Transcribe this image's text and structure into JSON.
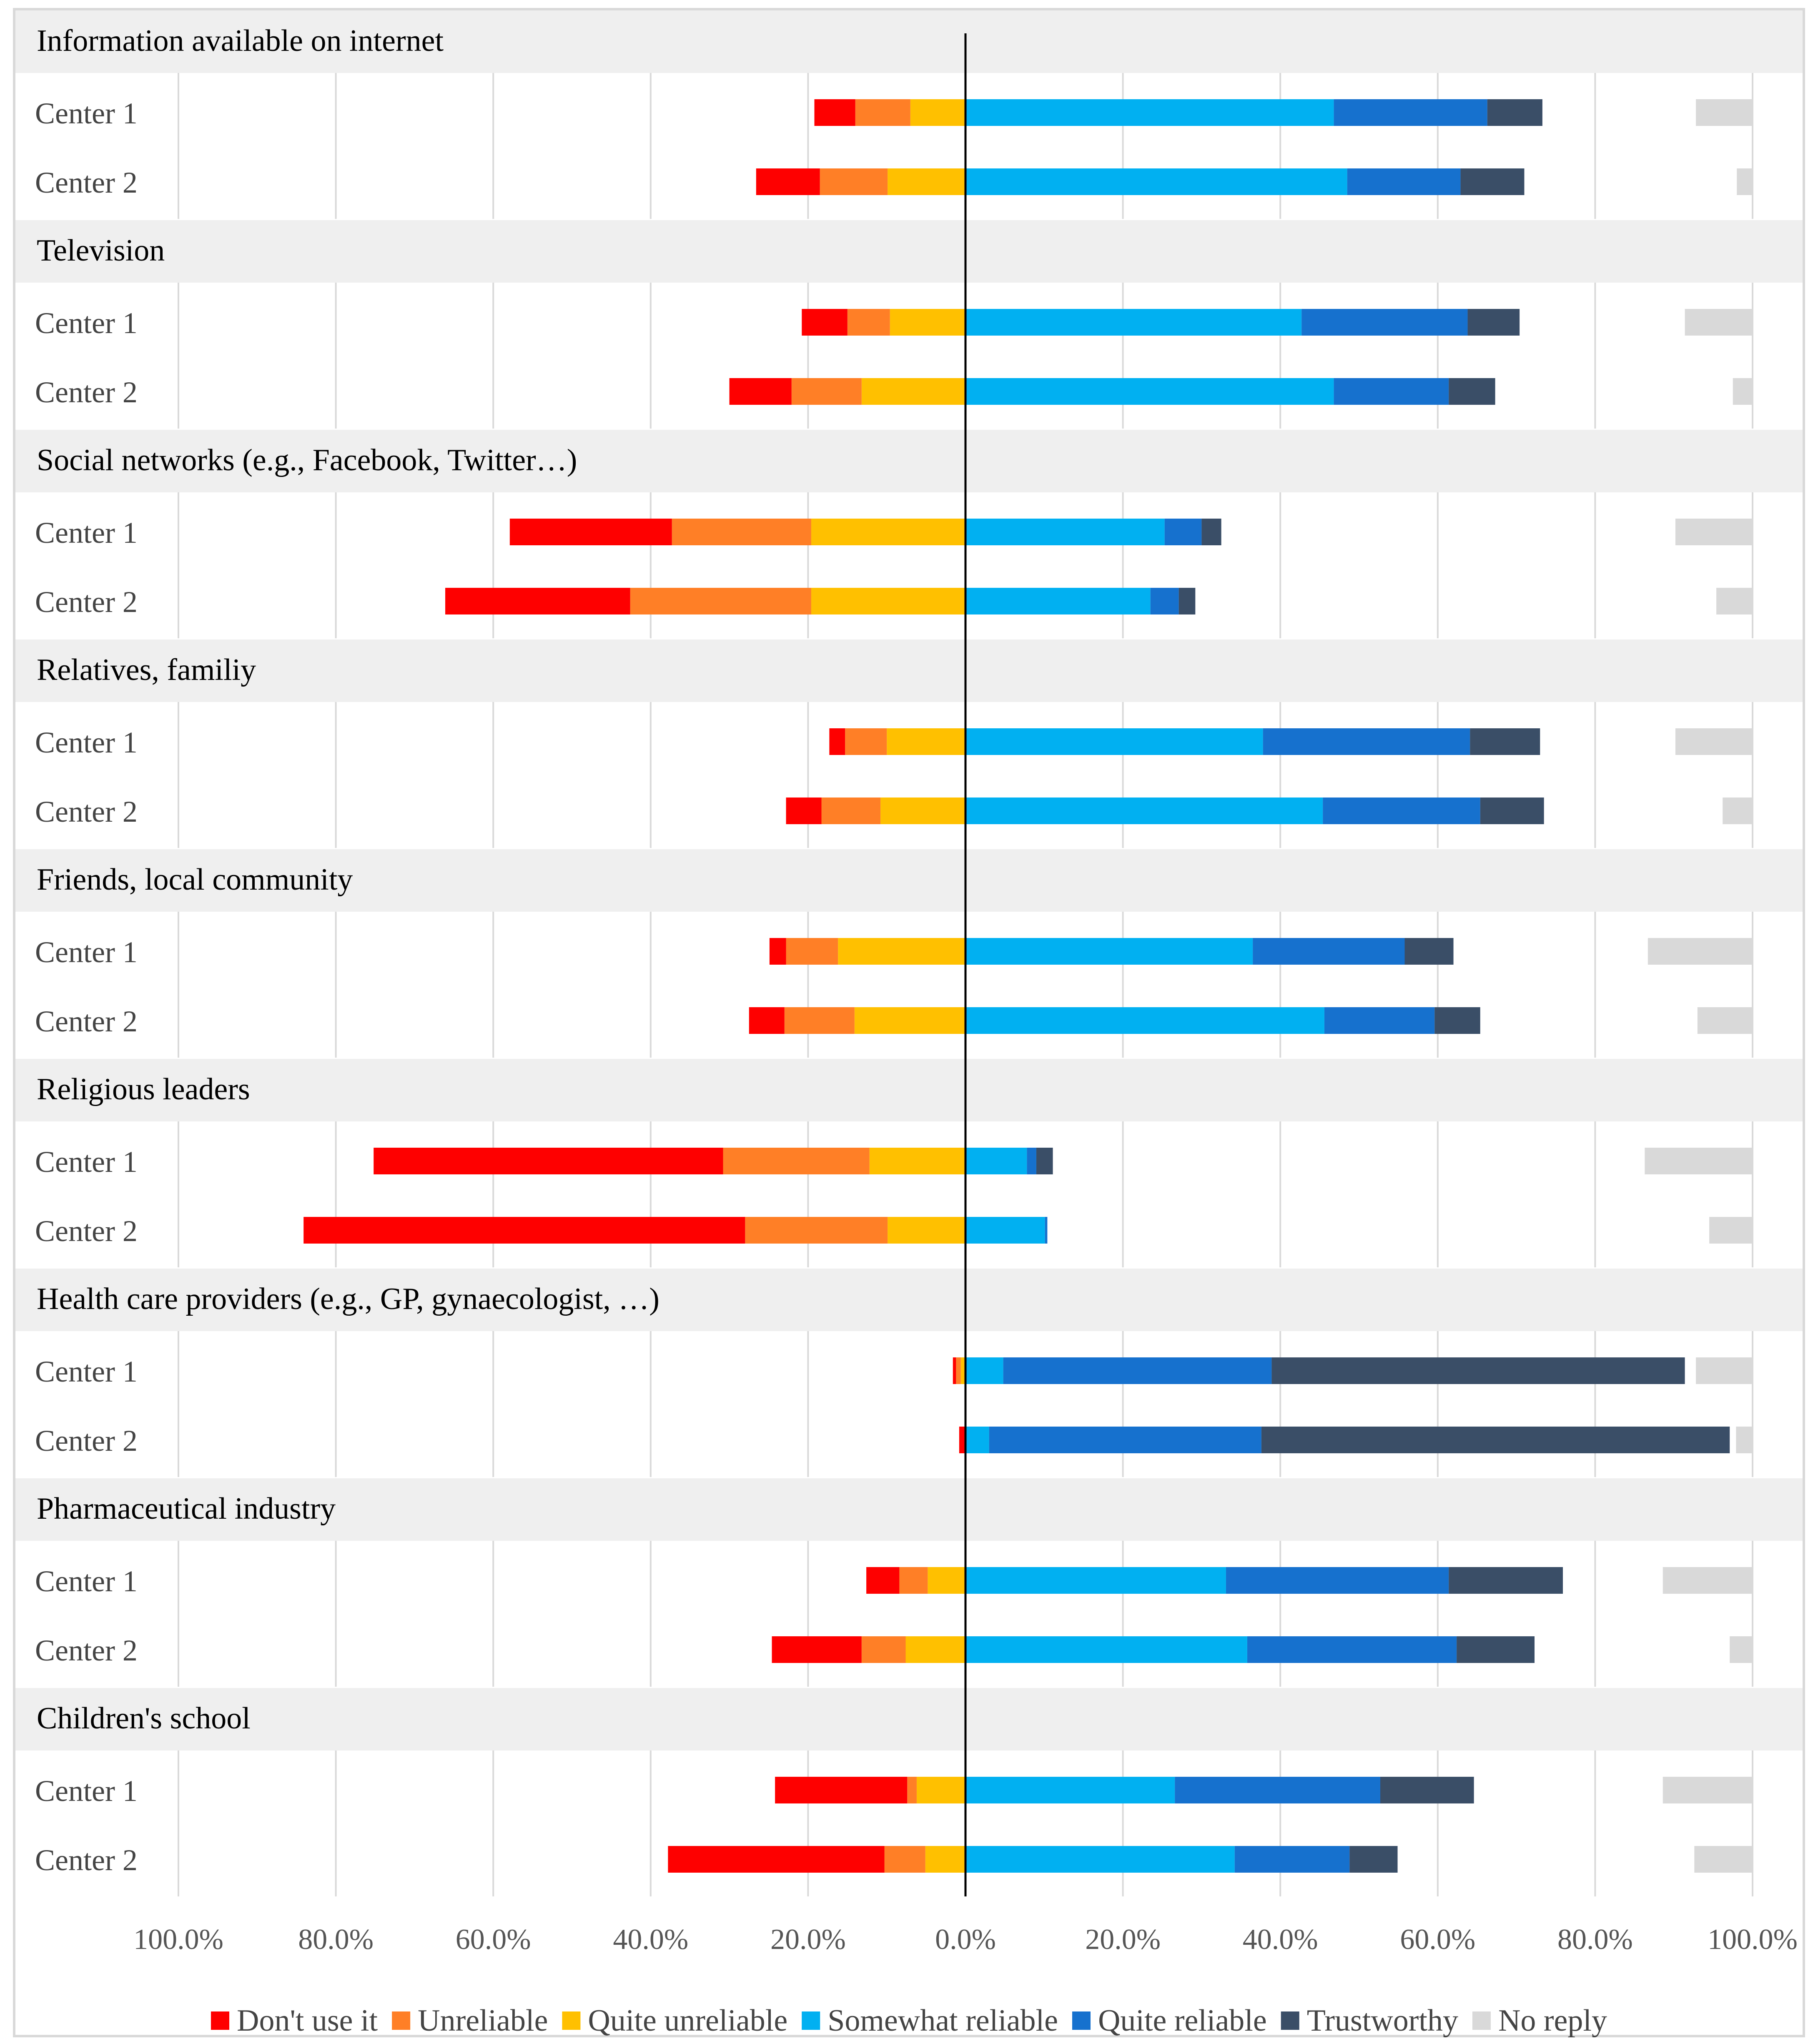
{
  "chart_data": {
    "type": "bar",
    "subtype": "diverging-stacked-horizontal",
    "x_ticks": [
      "100.0%",
      "80.0%",
      "60.0%",
      "40.0%",
      "20.0%",
      "0.0%",
      "20.0%",
      "40.0%",
      "60.0%",
      "80.0%",
      "100.0%"
    ],
    "xlim": [
      -100,
      100
    ],
    "grid": true,
    "legend_position": "bottom",
    "categories": [
      {
        "title": "Information available on internet",
        "rows": [
          {
            "label": "Center 1",
            "negative": {
              "dont_use": 5.2,
              "unreliable": 7.0,
              "quite_unreliable": 7.0
            },
            "positive": {
              "somewhat": 46.8,
              "quite": 19.5,
              "trustworthy": 7.0
            },
            "no_reply": 7.2
          },
          {
            "label": "Center 2",
            "negative": {
              "dont_use": 8.1,
              "unreliable": 8.6,
              "quite_unreliable": 9.9
            },
            "positive": {
              "somewhat": 48.5,
              "quite": 14.4,
              "trustworthy": 8.1
            },
            "no_reply": 2.0
          }
        ]
      },
      {
        "title": "Television",
        "rows": [
          {
            "label": "Center 1",
            "negative": {
              "dont_use": 5.8,
              "unreliable": 5.4,
              "quite_unreliable": 9.6
            },
            "positive": {
              "somewhat": 42.7,
              "quite": 21.1,
              "trustworthy": 6.6
            },
            "no_reply": 8.6
          },
          {
            "label": "Center 2",
            "negative": {
              "dont_use": 7.9,
              "unreliable": 8.9,
              "quite_unreliable": 13.2
            },
            "positive": {
              "somewhat": 46.8,
              "quite": 14.6,
              "trustworthy": 5.9
            },
            "no_reply": 2.5
          }
        ]
      },
      {
        "title": "Social networks (e.g., Facebook, Twitter…)",
        "rows": [
          {
            "label": "Center 1",
            "negative": {
              "dont_use": 20.6,
              "unreliable": 17.7,
              "quite_unreliable": 19.6
            },
            "positive": {
              "somewhat": 25.3,
              "quite": 4.7,
              "trustworthy": 2.5
            },
            "no_reply": 9.8
          },
          {
            "label": "Center 2",
            "negative": {
              "dont_use": 23.5,
              "unreliable": 23.0,
              "quite_unreliable": 19.6
            },
            "positive": {
              "somewhat": 23.5,
              "quite": 3.6,
              "trustworthy": 2.1
            },
            "no_reply": 4.6
          }
        ]
      },
      {
        "title": "Relatives, familiy",
        "rows": [
          {
            "label": "Center 1",
            "negative": {
              "dont_use": 2.0,
              "unreliable": 5.3,
              "quite_unreliable": 10.0
            },
            "positive": {
              "somewhat": 37.8,
              "quite": 26.3,
              "trustworthy": 8.9
            },
            "no_reply": 9.8
          },
          {
            "label": "Center 2",
            "negative": {
              "dont_use": 4.5,
              "unreliable": 7.5,
              "quite_unreliable": 10.8
            },
            "positive": {
              "somewhat": 45.4,
              "quite": 20.0,
              "trustworthy": 8.1
            },
            "no_reply": 3.8
          }
        ]
      },
      {
        "title": "Friends, local community",
        "rows": [
          {
            "label": "Center 1",
            "negative": {
              "dont_use": 2.1,
              "unreliable": 6.6,
              "quite_unreliable": 16.2
            },
            "positive": {
              "somewhat": 36.5,
              "quite": 19.3,
              "trustworthy": 6.2
            },
            "no_reply": 13.3
          },
          {
            "label": "Center 2",
            "negative": {
              "dont_use": 4.5,
              "unreliable": 8.9,
              "quite_unreliable": 14.1
            },
            "positive": {
              "somewhat": 45.6,
              "quite": 14.0,
              "trustworthy": 5.8
            },
            "no_reply": 7.0
          }
        ]
      },
      {
        "title": "Religious leaders",
        "rows": [
          {
            "label": "Center 1",
            "negative": {
              "dont_use": 44.4,
              "unreliable": 18.6,
              "quite_unreliable": 12.2
            },
            "positive": {
              "somewhat": 7.8,
              "quite": 1.2,
              "trustworthy": 2.1
            },
            "no_reply": 13.7
          },
          {
            "label": "Center 2",
            "negative": {
              "dont_use": 56.1,
              "unreliable": 18.1,
              "quite_unreliable": 9.9
            },
            "positive": {
              "somewhat": 10.1,
              "quite": 0.3,
              "trustworthy": 0
            },
            "no_reply": 5.5
          }
        ]
      },
      {
        "title": "Health care providers (e.g., GP, gynaecologist, …)",
        "rows": [
          {
            "label": "Center 1",
            "negative": {
              "dont_use": 0.4,
              "unreliable": 0.6,
              "quite_unreliable": 0.6
            },
            "positive": {
              "somewhat": 4.8,
              "quite": 34.1,
              "trustworthy": 52.5
            },
            "no_reply": 7.2
          },
          {
            "label": "Center 2",
            "negative": {
              "dont_use": 0.8,
              "unreliable": 0,
              "quite_unreliable": 0
            },
            "positive": {
              "somewhat": 3.0,
              "quite": 34.6,
              "trustworthy": 59.5
            },
            "no_reply": 2.1
          }
        ]
      },
      {
        "title": "Pharmaceutical industry",
        "rows": [
          {
            "label": "Center 1",
            "negative": {
              "dont_use": 4.2,
              "unreliable": 3.6,
              "quite_unreliable": 4.8
            },
            "positive": {
              "somewhat": 33.1,
              "quite": 28.3,
              "trustworthy": 14.5
            },
            "no_reply": 11.4
          },
          {
            "label": "Center 2",
            "negative": {
              "dont_use": 11.4,
              "unreliable": 5.6,
              "quite_unreliable": 7.6
            },
            "positive": {
              "somewhat": 35.8,
              "quite": 26.6,
              "trustworthy": 9.9
            },
            "no_reply": 2.9
          }
        ]
      },
      {
        "title": "Children's school",
        "rows": [
          {
            "label": "Center 1",
            "negative": {
              "dont_use": 16.8,
              "unreliable": 1.2,
              "quite_unreliable": 6.2
            },
            "positive": {
              "somewhat": 26.6,
              "quite": 26.1,
              "trustworthy": 11.9
            },
            "no_reply": 11.4
          },
          {
            "label": "Center 2",
            "negative": {
              "dont_use": 27.5,
              "unreliable": 5.2,
              "quite_unreliable": 5.1
            },
            "positive": {
              "somewhat": 34.2,
              "quite": 14.6,
              "trustworthy": 6.1
            },
            "no_reply": 7.4
          }
        ]
      }
    ],
    "legend": [
      {
        "key": "dont_use",
        "label": "Don't use it",
        "color": "#FF0000"
      },
      {
        "key": "unreliable",
        "label": "Unreliable",
        "color": "#FF7F27"
      },
      {
        "key": "quite_unreliable",
        "label": "Quite unreliable",
        "color": "#FFC000"
      },
      {
        "key": "somewhat",
        "label": "Somewhat reliable",
        "color": "#00B0F0"
      },
      {
        "key": "quite",
        "label": "Quite reliable",
        "color": "#1570CE"
      },
      {
        "key": "trustworthy",
        "label": "Trustworthy",
        "color": "#3B4E68"
      },
      {
        "key": "no_reply",
        "label": "No reply",
        "color": "#D9D9D9"
      }
    ],
    "colors": {
      "band_background": "#EFEFEF",
      "grid": "#D9D9D9",
      "zero_line": "#000000",
      "text": "#000000",
      "row_label": "#444444",
      "tick_label": "#555555"
    }
  }
}
